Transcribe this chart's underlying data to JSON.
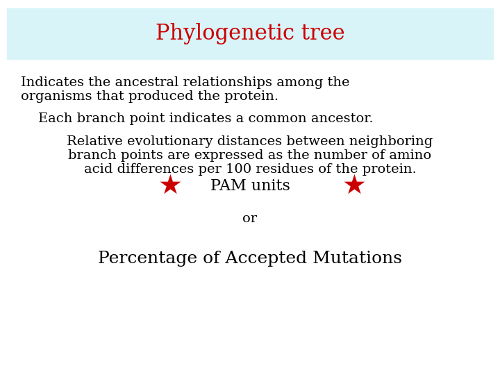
{
  "title": "Phylogenetic tree",
  "title_color": "#cc0000",
  "title_bg_color": "#d8f4f8",
  "title_fontsize": 22,
  "background_color": "#ffffff",
  "line1": "Indicates the ancestral relationships among the",
  "line2": "organisms that produced the protein.",
  "line3": "Each branch point indicates a common ancestor.",
  "line4": "Relative evolutionary distances between neighboring",
  "line5": "branch points are expressed as the number of amino",
  "line6": "acid differences per 100 residues of the protein.",
  "pam_text": "PAM units",
  "or_text": "or",
  "final_text": "Percentage of Accepted Mutations",
  "text_color": "#000000",
  "star_color": "#cc0000",
  "body_fontsize": 14,
  "indent_fontsize": 14,
  "pam_fontsize": 16,
  "or_fontsize": 14,
  "final_fontsize": 18,
  "star_size": 28
}
